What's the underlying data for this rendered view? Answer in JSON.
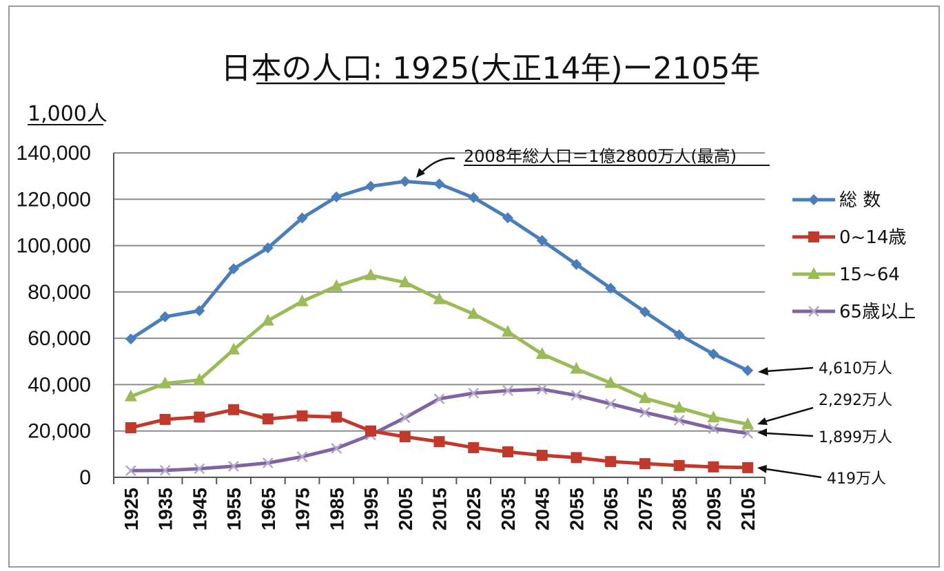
{
  "chart_data": {
    "type": "line",
    "title": "日本の人口: 1925(大正14年)ー2105年",
    "unit_label": "1,000人",
    "categories": [
      "1925",
      "1935",
      "1945",
      "1955",
      "1965",
      "1975",
      "1985",
      "1995",
      "2005",
      "2015",
      "2025",
      "2035",
      "2045",
      "2055",
      "2065",
      "2075",
      "2085",
      "2095",
      "2105"
    ],
    "ylim": [
      0,
      140000
    ],
    "yticks": [
      "0",
      "20,000",
      "40,000",
      "60,000",
      "80,000",
      "100,000",
      "120,000",
      "140,000"
    ],
    "grid": true,
    "legend_position": "right",
    "series": [
      {
        "name": "総 数",
        "color": "#4a7ebb",
        "marker": "diamond",
        "values": [
          59700,
          69300,
          71900,
          90000,
          99000,
          111900,
          121000,
          125600,
          127700,
          126600,
          120700,
          112000,
          102200,
          91900,
          81600,
          71400,
          61500,
          53200,
          46100
        ]
      },
      {
        "name": "0~14歳",
        "color": "#c0392b",
        "marker": "square",
        "values": [
          21400,
          25000,
          26000,
          29200,
          25200,
          26500,
          26000,
          20000,
          17500,
          15400,
          12800,
          11000,
          9500,
          8500,
          6800,
          5900,
          5100,
          4500,
          4190
        ]
      },
      {
        "name": "15~64",
        "color": "#9bbb59",
        "marker": "triangle",
        "values": [
          34900,
          40500,
          42000,
          55100,
          67600,
          75900,
          82500,
          87200,
          84100,
          76800,
          70500,
          62800,
          53200,
          46800,
          40700,
          34100,
          30000,
          25800,
          22920
        ]
      },
      {
        "name": "65歳以上",
        "color": "#8064a2",
        "marker": "x",
        "values": [
          2900,
          3000,
          3700,
          4800,
          6200,
          8900,
          12500,
          18300,
          25700,
          33900,
          36300,
          37400,
          38000,
          35400,
          31700,
          28000,
          24600,
          21100,
          18990
        ]
      }
    ],
    "annotations": {
      "peak": "2008年総人口＝1億2800万人(最高)",
      "end_total": "4,610万人",
      "end_15_64": "2,292万人",
      "end_65": "1,899万人",
      "end_0_14": "419万人"
    }
  }
}
